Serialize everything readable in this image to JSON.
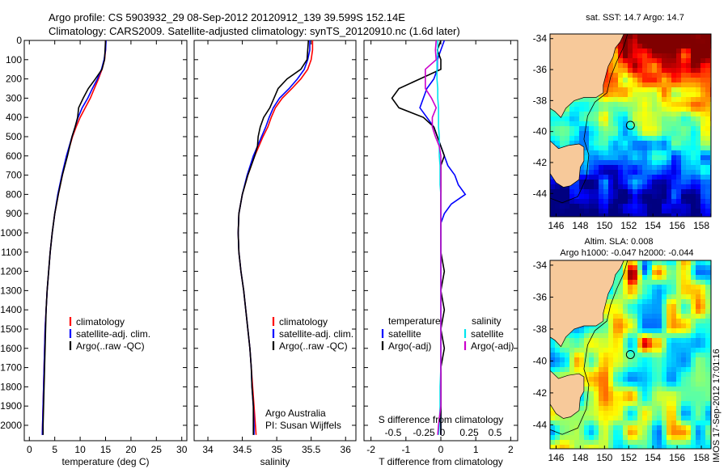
{
  "header": {
    "line1": "Argo profile: CS 5903932_29 08-Sep-2012 20120912_139 39.599S 152.14E",
    "line2": "Climatology: CARS2009. Satellite-adjusted climatology: synTS_20120910.nc (1.6d later)"
  },
  "side_label": "IMOS 17-Sep-2012 17:01:16",
  "colors": {
    "climatology": "#ff0000",
    "satellite": "#0000ff",
    "argo": "#000000",
    "sal_satellite": "#00e5ee",
    "sal_argo": "#cc00cc",
    "land": "#f7c99a"
  },
  "chart_data": [
    {
      "type": "line",
      "name": "temperature-profile",
      "xlabel": "temperature (deg C)",
      "ylabel": "",
      "xlim": [
        -1,
        31
      ],
      "ylim": [
        2080,
        0
      ],
      "xticks": [
        "0",
        "5",
        "10",
        "15",
        "20",
        "25",
        "30"
      ],
      "xtick_values": [
        0,
        5,
        10,
        15,
        20,
        25,
        30
      ],
      "yticks": [
        "0",
        "100",
        "200",
        "300",
        "400",
        "500",
        "600",
        "700",
        "800",
        "900",
        "1000",
        "1100",
        "1200",
        "1300",
        "1400",
        "1500",
        "1600",
        "1700",
        "1800",
        "1900",
        "2000"
      ],
      "ytick_values": [
        0,
        100,
        200,
        300,
        400,
        500,
        600,
        700,
        800,
        900,
        1000,
        1100,
        1200,
        1300,
        1400,
        1500,
        1600,
        1700,
        1800,
        1900,
        2000
      ],
      "legend": [
        "climatology",
        "satellite-adj. clim.",
        "Argo(..raw -QC)"
      ],
      "depth": [
        0,
        50,
        100,
        150,
        200,
        250,
        300,
        350,
        400,
        450,
        500,
        600,
        700,
        800,
        900,
        1000,
        1100,
        1200,
        1300,
        1400,
        1500,
        1600,
        1700,
        1800,
        1900,
        2000,
        2050
      ],
      "series": [
        {
          "name": "climatology",
          "color": "#ff0000",
          "values": [
            15.0,
            15.0,
            14.8,
            14.3,
            13.6,
            12.8,
            12.0,
            11.0,
            10.0,
            9.2,
            8.5,
            7.4,
            6.5,
            5.7,
            5.0,
            4.5,
            4.1,
            3.8,
            3.5,
            3.3,
            3.1,
            3.0,
            2.9,
            2.8,
            2.7,
            2.6,
            2.55
          ]
        },
        {
          "name": "satellite-adj. clim.",
          "color": "#0000ff",
          "values": [
            15.1,
            15.0,
            14.7,
            14.2,
            13.4,
            12.4,
            11.5,
            10.4,
            9.6,
            9.0,
            8.4,
            7.3,
            6.4,
            5.6,
            5.0,
            4.5,
            4.1,
            3.8,
            3.5,
            3.3,
            3.1,
            3.0,
            2.9,
            2.8,
            2.7,
            2.6,
            2.55
          ]
        },
        {
          "name": "Argo(..raw -QC)",
          "color": "#000000",
          "values": [
            15.0,
            14.9,
            14.8,
            14.3,
            13.0,
            11.6,
            10.6,
            9.7,
            9.5,
            9.0,
            8.4,
            7.5,
            6.5,
            5.7,
            5.0,
            4.5,
            4.1,
            3.8,
            3.5,
            3.3,
            3.2,
            3.1,
            3.0,
            2.9,
            2.8,
            2.7,
            2.7
          ]
        }
      ]
    },
    {
      "type": "line",
      "name": "salinity-profile",
      "xlabel": "salinity",
      "ylabel": "",
      "xlim": [
        33.8,
        36.15
      ],
      "ylim": [
        2080,
        0
      ],
      "xticks": [
        "34",
        "34.5",
        "35",
        "35.5",
        "36"
      ],
      "xtick_values": [
        34,
        34.5,
        35,
        35.5,
        36
      ],
      "legend": [
        "climatology",
        "satellite-adj. clim.",
        "Argo(..raw -QC)"
      ],
      "annotations": [
        "Argo Australia",
        "PI: Susan Wijffels"
      ],
      "depth": [
        0,
        50,
        100,
        150,
        200,
        250,
        300,
        350,
        400,
        450,
        500,
        550,
        600,
        700,
        800,
        900,
        1000,
        1100,
        1200,
        1300,
        1400,
        1500,
        1600,
        1700,
        1800,
        1900,
        2000,
        2050
      ],
      "series": [
        {
          "name": "climatology",
          "color": "#ff0000",
          "values": [
            35.52,
            35.52,
            35.5,
            35.45,
            35.35,
            35.22,
            35.08,
            34.98,
            34.92,
            34.87,
            34.8,
            34.74,
            34.68,
            34.58,
            34.5,
            34.45,
            34.44,
            34.45,
            34.48,
            34.52,
            34.55,
            34.58,
            34.61,
            34.63,
            34.65,
            34.67,
            34.69,
            34.7
          ]
        },
        {
          "name": "satellite-adj. clim.",
          "color": "#0000ff",
          "values": [
            35.48,
            35.48,
            35.45,
            35.4,
            35.3,
            35.18,
            35.04,
            34.95,
            34.89,
            34.84,
            34.78,
            34.72,
            34.66,
            34.57,
            34.5,
            34.45,
            34.44,
            34.45,
            34.48,
            34.52,
            34.55,
            34.58,
            34.61,
            34.63,
            34.64,
            34.66,
            34.67,
            34.67
          ]
        },
        {
          "name": "Argo(..raw -QC)",
          "color": "#000000",
          "values": [
            35.46,
            35.45,
            35.44,
            35.35,
            35.15,
            35.02,
            34.96,
            34.9,
            34.81,
            34.76,
            34.73,
            34.72,
            34.68,
            34.58,
            34.5,
            34.45,
            34.44,
            34.45,
            34.48,
            34.52,
            34.55,
            34.58,
            34.61,
            34.63,
            34.64,
            34.66,
            34.66,
            34.66
          ]
        }
      ]
    },
    {
      "type": "line",
      "name": "difference-profile",
      "xlabel": "T difference from climatology",
      "title_bottom": "S difference from climatology",
      "xlim": [
        -2.2,
        2.2
      ],
      "ylim": [
        2080,
        0
      ],
      "xticks": [
        "-2",
        "-1",
        "0",
        "1",
        "2"
      ],
      "xtick_values": [
        -2,
        -1,
        0,
        1,
        2
      ],
      "s_ticks": [
        "-0.5",
        "-0.25",
        "0",
        "0.25",
        "0.5"
      ],
      "s_tick_values": [
        -0.5,
        -0.25,
        0,
        0.25,
        0.5
      ],
      "legend_temperature_title": "temperature",
      "legend_salinity_title": "salinity",
      "legend_temperature": [
        "satellite",
        "Argo(-adj)"
      ],
      "legend_salinity": [
        "satellite",
        "Argo(-adj)"
      ],
      "depth": [
        0,
        50,
        100,
        150,
        200,
        250,
        300,
        350,
        400,
        450,
        500,
        550,
        600,
        650,
        700,
        750,
        800,
        850,
        900,
        950,
        1000,
        1100,
        1200,
        1300,
        1400,
        1500,
        1600,
        1700,
        1800,
        1900,
        2000,
        2050
      ],
      "series": [
        {
          "name": "T satellite",
          "color": "#0000ff",
          "values": [
            0.1,
            0.0,
            -0.1,
            -0.1,
            -0.2,
            -0.4,
            -0.5,
            -0.6,
            -0.4,
            -0.2,
            -0.1,
            0.0,
            0.1,
            0.2,
            0.4,
            0.5,
            0.7,
            0.3,
            0.1,
            0.0,
            0.0,
            0.0,
            0.0,
            0.0,
            0.0,
            0.0,
            0.0,
            0.0,
            0.0,
            0.0,
            0.0,
            0.0
          ]
        },
        {
          "name": "T Argo(-adj)",
          "color": "#000000",
          "values": [
            0.0,
            -0.1,
            0.0,
            0.0,
            -0.6,
            -1.2,
            -1.4,
            -1.2,
            -0.5,
            -0.2,
            -0.1,
            0.0,
            0.1,
            0.0,
            0.0,
            0.0,
            0.0,
            0.0,
            0.0,
            0.0,
            0.0,
            0.0,
            0.1,
            0.0,
            0.1,
            0.0,
            0.1,
            0.0,
            0.0,
            0.0,
            0.0,
            0.0
          ]
        },
        {
          "name": "S satellite",
          "color": "#00e5ee",
          "values": [
            -0.04,
            -0.04,
            -0.05,
            -0.05,
            -0.05,
            -0.04,
            -0.04,
            -0.03,
            -0.03,
            -0.03,
            -0.02,
            -0.02,
            -0.02,
            -0.01,
            -0.01,
            -0.01,
            0.0,
            0.0,
            0.0,
            0.0,
            0.0,
            0.0,
            0.0,
            0.0,
            0.0,
            0.0,
            0.0,
            0.0,
            -0.01,
            -0.01,
            -0.02,
            -0.03
          ]
        },
        {
          "name": "S Argo(-adj)",
          "color": "#cc00cc",
          "values": [
            -0.06,
            -0.07,
            -0.06,
            -0.2,
            -0.2,
            -0.2,
            -0.12,
            -0.06,
            -0.11,
            -0.11,
            -0.07,
            -0.02,
            0.0,
            0.0,
            0.0,
            0.0,
            0.0,
            0.0,
            0.0,
            0.0,
            0.0,
            0.0,
            0.0,
            0.0,
            0.0,
            0.0,
            0.0,
            0.0,
            0.0,
            0.0,
            -0.03,
            -0.04
          ]
        }
      ]
    },
    {
      "type": "heatmap",
      "name": "sst-map",
      "title": "sat. SST: 14.7  Argo: 14.7",
      "xlim": [
        145.5,
        158.8
      ],
      "ylim": [
        -45.5,
        -33.7
      ],
      "xticks": [
        "146",
        "148",
        "150",
        "152",
        "154",
        "156",
        "158"
      ],
      "xtick_values": [
        146,
        148,
        150,
        152,
        154,
        156,
        158
      ],
      "yticks": [
        "-34",
        "-36",
        "-38",
        "-40",
        "-42",
        "-44"
      ],
      "ytick_values": [
        -34,
        -36,
        -38,
        -40,
        -42,
        -44
      ],
      "marker": {
        "lon": 152.14,
        "lat": -39.599
      }
    },
    {
      "type": "heatmap",
      "name": "sla-map",
      "title": "Altim. SLA: 0.008",
      "subtitle": "Argo h1000: -0.047 h2000: -0.044",
      "xlim": [
        145.5,
        158.8
      ],
      "ylim": [
        -45.5,
        -33.7
      ],
      "xticks": [
        "146",
        "148",
        "150",
        "152",
        "154",
        "156",
        "158"
      ],
      "xtick_values": [
        146,
        148,
        150,
        152,
        154,
        156,
        158
      ],
      "yticks": [
        "-34",
        "-36",
        "-38",
        "-40",
        "-42",
        "-44"
      ],
      "ytick_values": [
        -34,
        -36,
        -38,
        -40,
        -42,
        -44
      ],
      "marker": {
        "lon": 152.14,
        "lat": -39.599
      }
    }
  ]
}
